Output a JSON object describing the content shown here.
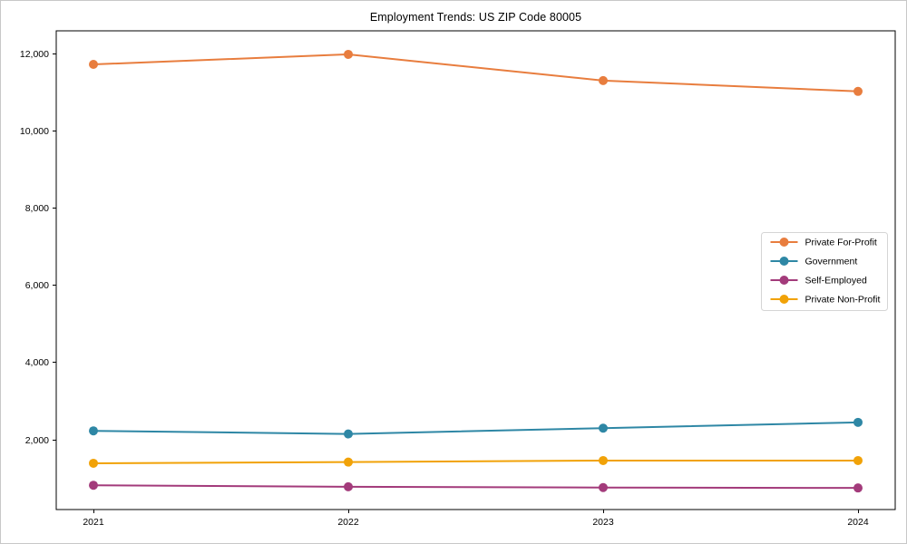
{
  "chart_data": {
    "type": "line",
    "title": "Employment Trends: US ZIP Code 80005",
    "x": [
      "2021",
      "2022",
      "2023",
      "2024"
    ],
    "series": [
      {
        "name": "Private For-Profit",
        "color": "#E87D3E",
        "values": [
          11720,
          11980,
          11300,
          11020
        ]
      },
      {
        "name": "Government",
        "color": "#2E87A5",
        "values": [
          2220,
          2140,
          2290,
          2440
        ]
      },
      {
        "name": "Self-Employed",
        "color": "#A33B7B",
        "values": [
          810,
          770,
          750,
          740
        ]
      },
      {
        "name": "Private Non-Profit",
        "color": "#F1A208",
        "values": [
          1380,
          1410,
          1450,
          1450
        ]
      }
    ],
    "xlabel": "",
    "ylabel": "",
    "ylim": [
      180,
      12590
    ],
    "yticks": [
      2000,
      4000,
      6000,
      8000,
      10000,
      12000
    ],
    "ytick_labels": [
      "2,000",
      "4,000",
      "6,000",
      "8,000",
      "10,000",
      "12,000"
    ],
    "grid": false,
    "legend_position": "center right",
    "axis_color": "#000000",
    "background": "#ffffff",
    "marker": "circle"
  }
}
